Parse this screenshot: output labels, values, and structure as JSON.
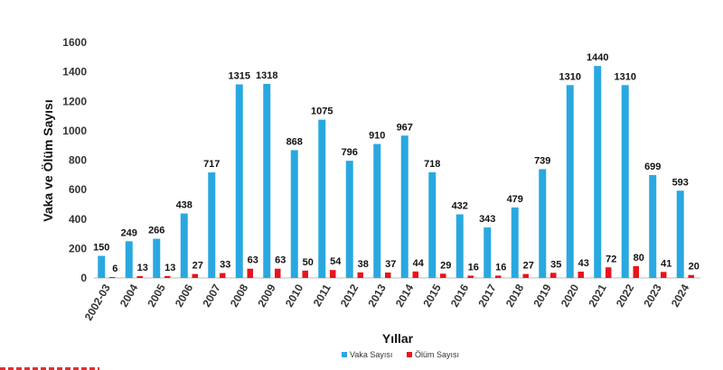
{
  "chart_data": {
    "type": "bar",
    "title": "",
    "xlabel": "Yıllar",
    "ylabel": "Vaka ve Ölüm Sayısı",
    "ylim": [
      0,
      1600
    ],
    "yticks": [
      0,
      200,
      400,
      600,
      800,
      1000,
      1200,
      1400,
      1600
    ],
    "grid": false,
    "legend_position": "bottom",
    "categories": [
      "2002-03",
      "2004",
      "2005",
      "2006",
      "2007",
      "2008",
      "2009",
      "2010",
      "2011",
      "2012",
      "2013",
      "2014",
      "2015",
      "2016",
      "2017",
      "2018",
      "2019",
      "2020",
      "2021",
      "2022",
      "2023",
      "2024"
    ],
    "series": [
      {
        "name": "Vaka Sayısı",
        "color": "#29a8e0",
        "values": [
          150,
          249,
          266,
          438,
          717,
          1315,
          1318,
          868,
          1075,
          796,
          910,
          967,
          718,
          432,
          343,
          479,
          739,
          1310,
          1440,
          1310,
          699,
          593
        ]
      },
      {
        "name": "Ölüm Sayısı",
        "color": "#e8141c",
        "values": [
          6,
          13,
          13,
          27,
          33,
          63,
          63,
          50,
          54,
          38,
          37,
          44,
          29,
          16,
          16,
          27,
          35,
          43,
          72,
          80,
          41,
          20
        ]
      }
    ]
  }
}
